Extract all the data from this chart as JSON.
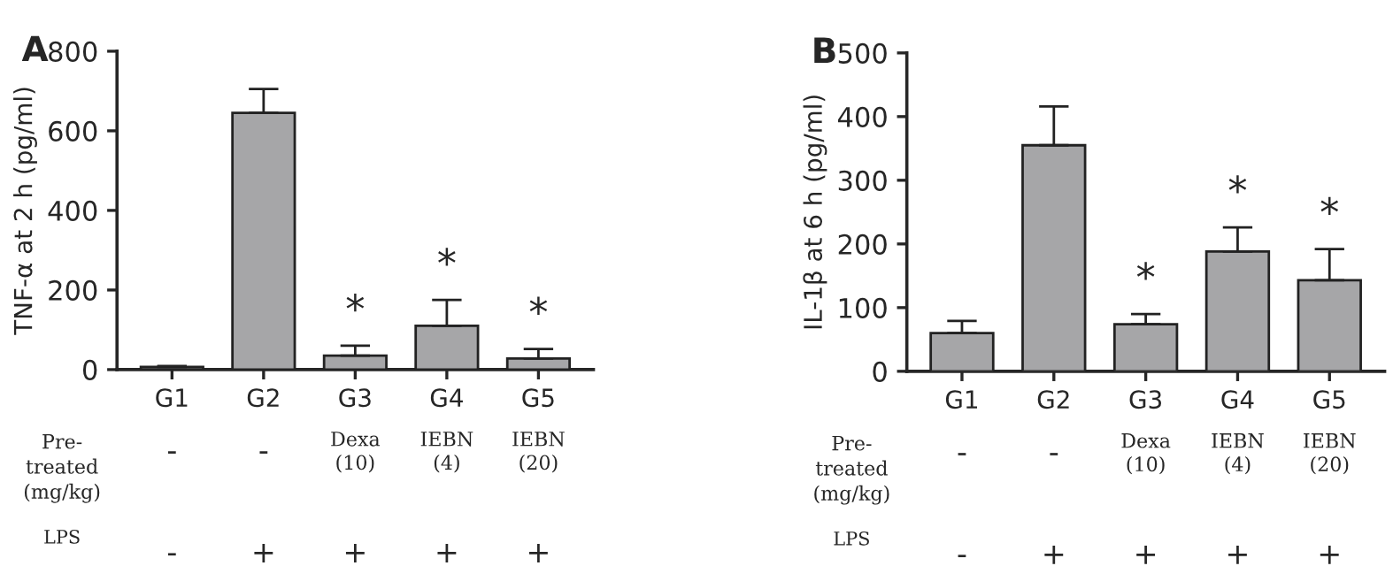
{
  "chart_data": [
    {
      "type": "bar",
      "title": "A",
      "ylabel": "TNF-α at 2 h (pg/ml)",
      "categories": [
        "G1",
        "G2",
        "G3",
        "G4",
        "G5"
      ],
      "values": [
        7,
        645,
        35,
        110,
        28
      ],
      "errors": [
        [
          7,
          9
        ],
        [
          645,
          705
        ],
        [
          35,
          60
        ],
        [
          110,
          175
        ],
        [
          28,
          52
        ]
      ],
      "color": "#a6a6a8",
      "value_labels": [
        null,
        null,
        "*",
        "*",
        "*"
      ],
      "ylim": [
        0,
        800
      ],
      "yticks": [
        0,
        200,
        400,
        600,
        800
      ],
      "grid": false,
      "annotations": [
        "Pre-\ntreated\n(mg/kg)",
        "-",
        "-",
        "Dexa\n(10)",
        "IEBN\n(4)",
        "IEBN\n(20)",
        "LPS",
        "-",
        "+",
        "+",
        "+",
        "+"
      ]
    },
    {
      "type": "bar",
      "title": "B",
      "ylabel": "IL-1β at 6 h (pg/ml)",
      "categories": [
        "G1",
        "G2",
        "G3",
        "G4",
        "G5"
      ],
      "values": [
        60,
        355,
        74,
        188,
        143
      ],
      "errors": [
        [
          60,
          79
        ],
        [
          355,
          416
        ],
        [
          74,
          90
        ],
        [
          188,
          226
        ],
        [
          143,
          192
        ]
      ],
      "color": "#a6a6a8",
      "value_labels": [
        null,
        null,
        "*",
        "*",
        "*"
      ],
      "ylim": [
        0,
        500
      ],
      "yticks": [
        0,
        100,
        200,
        300,
        400,
        500
      ],
      "grid": false,
      "annotations": [
        "Pre-\ntreated\n(mg/kg)",
        "-",
        "-",
        "Dexa\n(10)",
        "IEBN\n(4)",
        "IEBN\n(20)",
        "LPS",
        "-",
        "+",
        "+",
        "+",
        "+"
      ]
    }
  ]
}
